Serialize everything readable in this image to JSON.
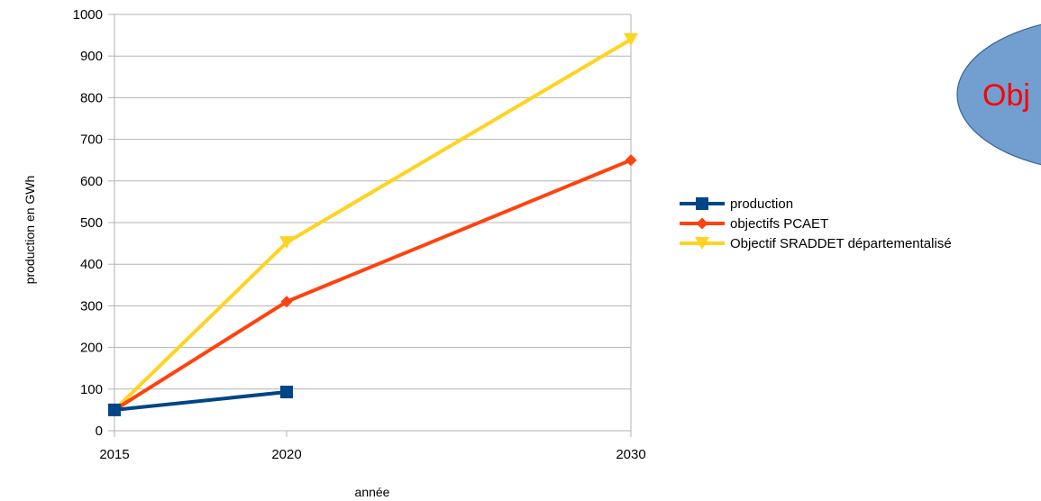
{
  "chart_data": {
    "type": "line",
    "x": [
      2015,
      2020,
      2030
    ],
    "xlim": [
      2015,
      2030
    ],
    "ylim": [
      0,
      1000
    ],
    "y_ticks": [
      0,
      100,
      200,
      300,
      400,
      500,
      600,
      700,
      800,
      900,
      1000
    ],
    "x_ticks": [
      2015,
      2020,
      2030
    ],
    "xlabel": "année",
    "ylabel": "production en GWh",
    "grid": "horizontal",
    "legend_position": "right",
    "series": [
      {
        "name": "production",
        "color": "#004586",
        "marker": "square",
        "points": [
          [
            2015,
            50
          ],
          [
            2020,
            93
          ]
        ]
      },
      {
        "name": "objectifs PCAET",
        "color": "#ff420e",
        "marker": "diamond",
        "points": [
          [
            2015,
            50
          ],
          [
            2020,
            310
          ],
          [
            2030,
            650
          ]
        ]
      },
      {
        "name": "Objectif SRADDET départementalisé",
        "color": "#ffd320",
        "marker": "triangle-down",
        "points": [
          [
            2015,
            50
          ],
          [
            2020,
            452
          ],
          [
            2030,
            940
          ]
        ]
      }
    ]
  },
  "callout": {
    "text": "Obj",
    "fill": "#729fcf",
    "stroke": "#3465a4",
    "text_color": "#ff0000"
  }
}
